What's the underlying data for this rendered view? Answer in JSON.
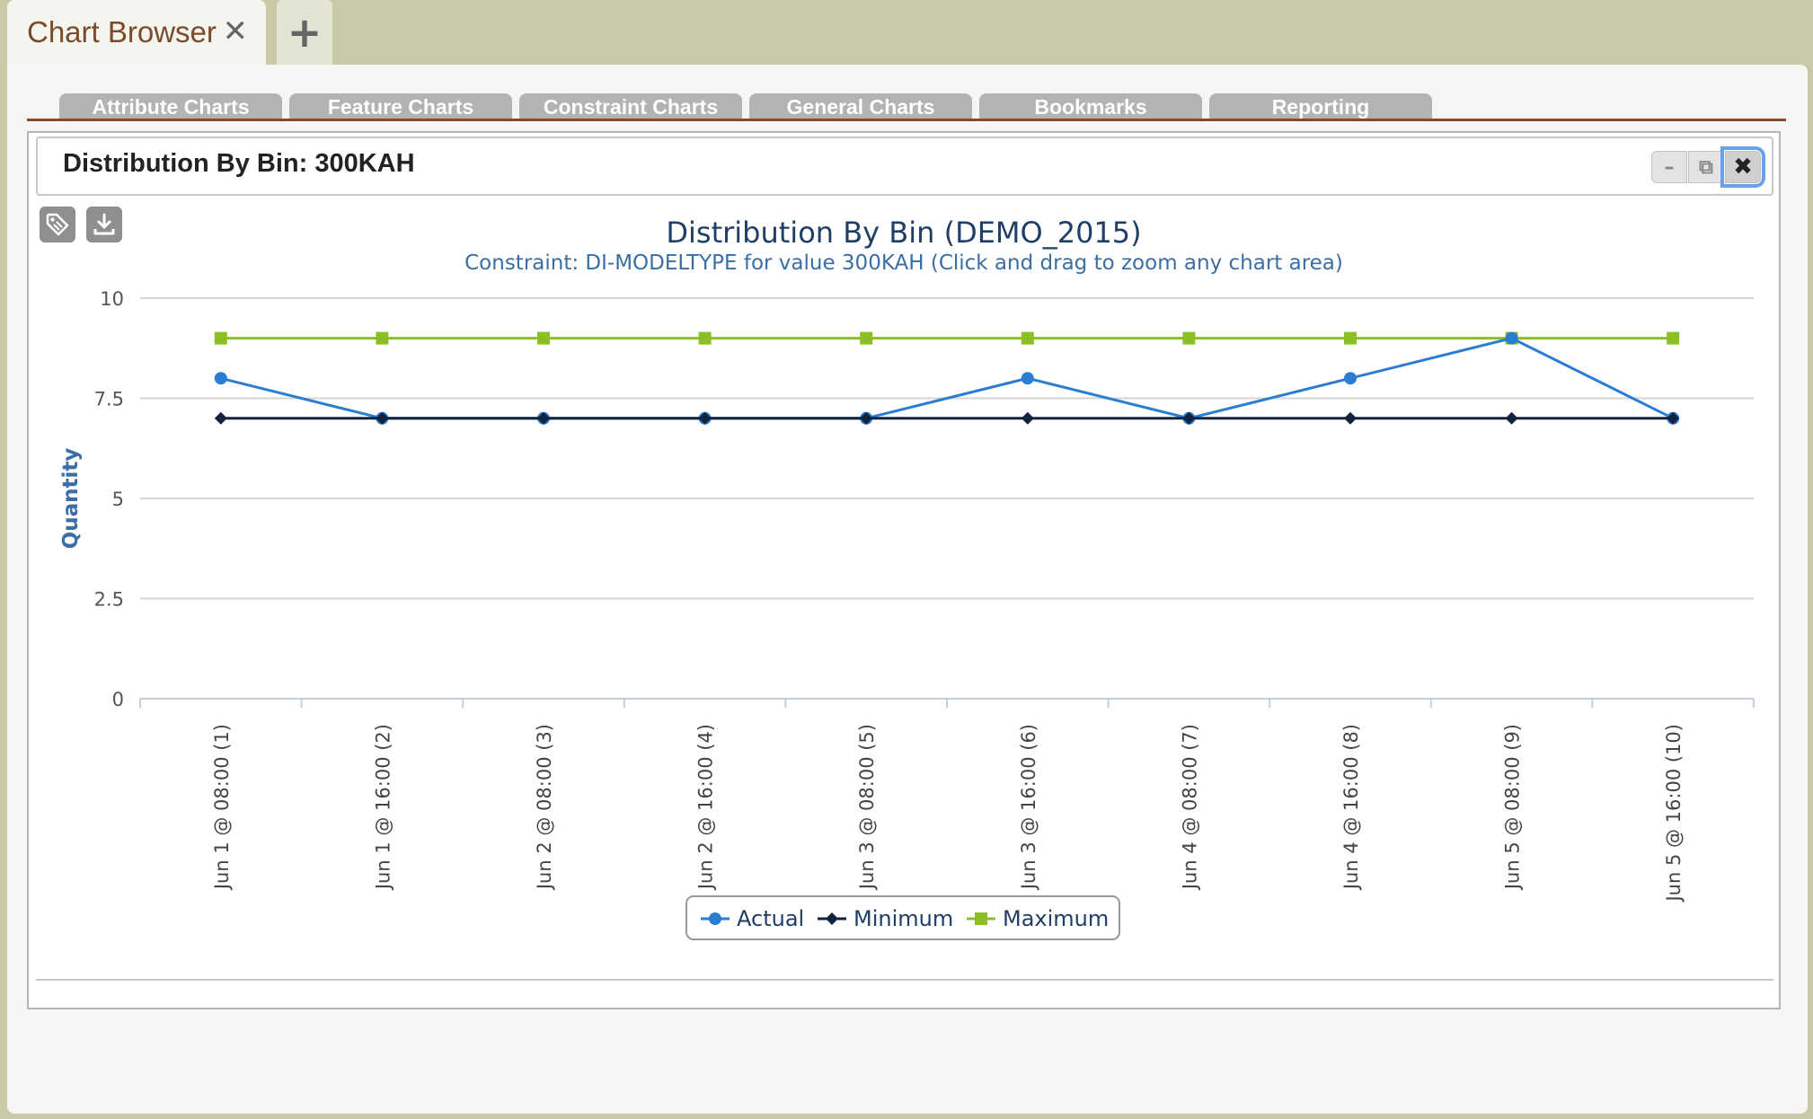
{
  "browser_tab": {
    "title": "Chart Browser",
    "close_label": "✕",
    "add_label": "+"
  },
  "subtabs": [
    {
      "label": "Attribute Charts"
    },
    {
      "label": "Feature Charts"
    },
    {
      "label": "Constraint Charts"
    },
    {
      "label": "General Charts"
    },
    {
      "label": "Bookmarks"
    },
    {
      "label": "Reporting"
    }
  ],
  "panel": {
    "title": "Distribution By Bin: 300KAH",
    "minimize_label": "–",
    "restore_label": "⧉",
    "close_label": "✖"
  },
  "toolbar": {
    "tag_icon": "tag-icon",
    "download_icon": "download-icon"
  },
  "chart_data": {
    "type": "line",
    "title": "Distribution By Bin (DEMO_2015)",
    "subtitle": "Constraint: DI-MODELTYPE for value 300KAH (Click and drag to zoom any chart area)",
    "xlabel": "",
    "ylabel": "Quantity",
    "ylim": [
      0,
      10
    ],
    "yticks": [
      "0",
      "2.5",
      "5",
      "7.5",
      "10"
    ],
    "categories": [
      "Jun 1 @ 08:00 (1)",
      "Jun 1 @ 16:00 (2)",
      "Jun 2 @ 08:00 (3)",
      "Jun 2 @ 16:00 (4)",
      "Jun 3 @ 08:00 (5)",
      "Jun 3 @ 16:00 (6)",
      "Jun 4 @ 08:00 (7)",
      "Jun 4 @ 16:00 (8)",
      "Jun 5 @ 08:00 (9)",
      "Jun 5 @ 16:00 (10)"
    ],
    "series": [
      {
        "name": "Actual",
        "color": "#2b7cd3",
        "marker": "circle",
        "values": [
          8,
          7,
          7,
          7,
          7,
          8,
          7,
          8,
          9,
          7
        ]
      },
      {
        "name": "Minimum",
        "color": "#10243f",
        "marker": "diamond",
        "values": [
          7,
          7,
          7,
          7,
          7,
          7,
          7,
          7,
          7,
          7
        ]
      },
      {
        "name": "Maximum",
        "color": "#8cbf26",
        "marker": "square",
        "values": [
          9,
          9,
          9,
          9,
          9,
          9,
          9,
          9,
          9,
          9
        ]
      }
    ],
    "grid": true,
    "legend": "bottom-center"
  }
}
